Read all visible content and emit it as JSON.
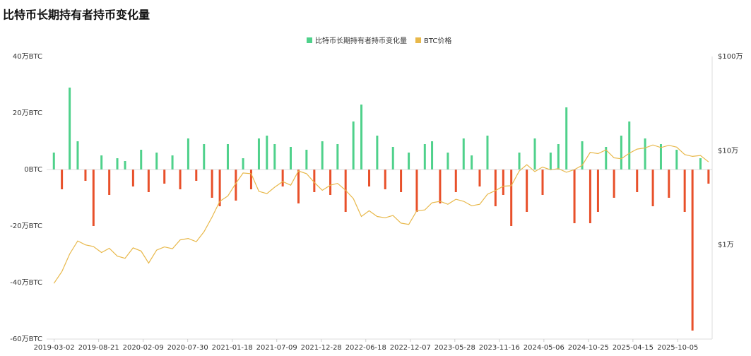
{
  "chart_data": {
    "type": "combo",
    "title": "比特币长期持有者持币变化量",
    "x": [
      "2019-03-01",
      "2019-04-01",
      "2019-05-01",
      "2019-06-01",
      "2019-07-01",
      "2019-08-01",
      "2019-09-01",
      "2019-10-01",
      "2019-11-01",
      "2019-12-01",
      "2020-01-01",
      "2020-02-01",
      "2020-03-01",
      "2020-04-01",
      "2020-05-01",
      "2020-06-01",
      "2020-07-01",
      "2020-08-01",
      "2020-09-01",
      "2020-10-01",
      "2020-11-01",
      "2020-12-01",
      "2021-01-01",
      "2021-02-01",
      "2021-03-01",
      "2021-04-01",
      "2021-05-01",
      "2021-06-01",
      "2021-07-01",
      "2021-08-01",
      "2021-09-01",
      "2021-10-01",
      "2021-11-01",
      "2021-12-01",
      "2022-01-01",
      "2022-02-01",
      "2022-03-01",
      "2022-04-01",
      "2022-05-01",
      "2022-06-01",
      "2022-07-01",
      "2022-08-01",
      "2022-09-01",
      "2022-10-01",
      "2022-11-01",
      "2022-12-01",
      "2023-01-01",
      "2023-02-01",
      "2023-03-01",
      "2023-04-01",
      "2023-05-01",
      "2023-06-01",
      "2023-07-01",
      "2023-08-01",
      "2023-09-01",
      "2023-10-01",
      "2023-11-01",
      "2023-12-01",
      "2024-01-01",
      "2024-02-01",
      "2024-03-01",
      "2024-04-01",
      "2024-05-01",
      "2024-06-01",
      "2024-07-01",
      "2024-08-01",
      "2024-09-01",
      "2024-10-01",
      "2024-11-01",
      "2024-12-01",
      "2025-01-01",
      "2025-02-01",
      "2025-03-01",
      "2025-04-01",
      "2025-05-01",
      "2025-06-01",
      "2025-07-01",
      "2025-08-01",
      "2025-09-01",
      "2025-10-01",
      "2025-11-01",
      "2025-12-01",
      "2026-01-01",
      "2026-02-01"
    ],
    "series": [
      {
        "name": "比特币长期持有者持币变化量",
        "type": "bar",
        "color": "#4fd18b",
        "negative_color": "#e8502a",
        "values": [
          60000,
          -70000,
          290000,
          100000,
          -40000,
          -200000,
          50000,
          -90000,
          40000,
          30000,
          -60000,
          70000,
          -80000,
          60000,
          -50000,
          50000,
          -70000,
          110000,
          -40000,
          90000,
          -100000,
          -130000,
          90000,
          -110000,
          40000,
          -70000,
          110000,
          120000,
          90000,
          -60000,
          80000,
          -120000,
          70000,
          -80000,
          100000,
          -90000,
          90000,
          -150000,
          170000,
          230000,
          -60000,
          120000,
          -70000,
          80000,
          -80000,
          60000,
          -150000,
          90000,
          100000,
          -120000,
          60000,
          -80000,
          110000,
          50000,
          -60000,
          120000,
          -130000,
          -90000,
          -200000,
          60000,
          -150000,
          110000,
          -90000,
          60000,
          90000,
          220000,
          -190000,
          100000,
          -190000,
          -150000,
          80000,
          -100000,
          120000,
          170000,
          -80000,
          110000,
          -130000,
          90000,
          -100000,
          70000,
          -150000,
          -570000,
          40000,
          -50000
        ]
      },
      {
        "name": "BTC价格",
        "type": "line",
        "axis": "y2",
        "color": "#e8b84a",
        "values": [
          3900,
          5200,
          8000,
          11000,
          10000,
          9600,
          8300,
          9200,
          7600,
          7200,
          9300,
          8600,
          6400,
          8800,
          9500,
          9100,
          11300,
          11700,
          10800,
          13800,
          19700,
          29000,
          33000,
          45000,
          58000,
          57000,
          37000,
          35000,
          41000,
          47000,
          43000,
          61000,
          57000,
          46000,
          38000,
          43000,
          45000,
          38000,
          31000,
          20000,
          23000,
          20000,
          19400,
          20500,
          17000,
          16500,
          23000,
          23500,
          28000,
          29000,
          27000,
          30500,
          29000,
          26000,
          27000,
          34500,
          37700,
          42000,
          42500,
          61000,
          71000,
          60000,
          67000,
          62500,
          64500,
          59000,
          63000,
          70000,
          96000,
          93000,
          102000,
          84000,
          82000,
          94000,
          104000,
          107000,
          115000,
          108000,
          114000,
          109000,
          91000,
          87000,
          89000,
          76000
        ]
      }
    ],
    "xlim": [
      "2019-02-01",
      "2026-02-15"
    ],
    "xticks": [
      "2019-03-02",
      "2019-08-21",
      "2020-02-09",
      "2020-07-30",
      "2021-01-18",
      "2021-07-09",
      "2021-12-28",
      "2022-06-18",
      "2022-12-07",
      "2023-05-28",
      "2023-11-16",
      "2024-05-06",
      "2024-10-25",
      "2025-04-15",
      "2025-10-05"
    ],
    "ylim": [
      -600000,
      400000
    ],
    "yticks": [
      {
        "value": 400000,
        "label": "40万BTC"
      },
      {
        "value": 200000,
        "label": "20万BTC"
      },
      {
        "value": 0,
        "label": "0BTC"
      },
      {
        "value": -200000,
        "label": "-20万BTC"
      },
      {
        "value": -400000,
        "label": "-40万BTC"
      },
      {
        "value": -600000,
        "label": "-60万BTC"
      }
    ],
    "y2lim": [
      1000,
      1000000
    ],
    "y2log": true,
    "y2ticks": [
      {
        "value": 1000000,
        "label": "$100万"
      },
      {
        "value": 100000,
        "label": "$10万"
      },
      {
        "value": 10000,
        "label": "$1万"
      }
    ],
    "grid": false
  }
}
